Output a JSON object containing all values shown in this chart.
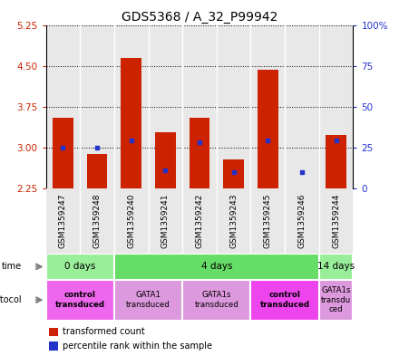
{
  "title": "GDS5368 / A_32_P99942",
  "samples": [
    "GSM1359247",
    "GSM1359248",
    "GSM1359240",
    "GSM1359241",
    "GSM1359242",
    "GSM1359243",
    "GSM1359245",
    "GSM1359246",
    "GSM1359244"
  ],
  "bar_bottom": 2.25,
  "bar_top": [
    3.55,
    2.87,
    4.65,
    3.28,
    3.55,
    2.78,
    4.43,
    2.25,
    3.22
  ],
  "blue_dot_y": [
    3.0,
    3.0,
    3.12,
    2.58,
    3.1,
    2.55,
    3.12,
    2.55,
    3.12
  ],
  "ylim": [
    2.25,
    5.25
  ],
  "yticks_left": [
    2.25,
    3.0,
    3.75,
    4.5,
    5.25
  ],
  "yticks_right": [
    0,
    25,
    50,
    75,
    100
  ],
  "bar_color": "#cc2200",
  "blue_color": "#2233cc",
  "plot_bg": "#e8e8e8",
  "time_groups": [
    {
      "label": "0 days",
      "start": 0,
      "end": 2,
      "color": "#99ee99"
    },
    {
      "label": "4 days",
      "start": 2,
      "end": 8,
      "color": "#66dd66"
    },
    {
      "label": "14 days",
      "start": 8,
      "end": 9,
      "color": "#99ee99"
    }
  ],
  "protocol_groups": [
    {
      "label": "control\ntransduced",
      "start": 0,
      "end": 2,
      "color": "#ee66ee",
      "bold": true
    },
    {
      "label": "GATA1\ntransduced",
      "start": 2,
      "end": 4,
      "color": "#dd99dd",
      "bold": false
    },
    {
      "label": "GATA1s\ntransduced",
      "start": 4,
      "end": 6,
      "color": "#dd99dd",
      "bold": false
    },
    {
      "label": "control\ntransduced",
      "start": 6,
      "end": 8,
      "color": "#ee44ee",
      "bold": true
    },
    {
      "label": "GATA1s\ntransdu\nced",
      "start": 8,
      "end": 9,
      "color": "#dd99dd",
      "bold": false
    }
  ],
  "left_axis_color": "#cc2200",
  "right_axis_color": "#2233cc",
  "title_fontsize": 10,
  "tick_fontsize": 7.5,
  "sample_fontsize": 6.5
}
